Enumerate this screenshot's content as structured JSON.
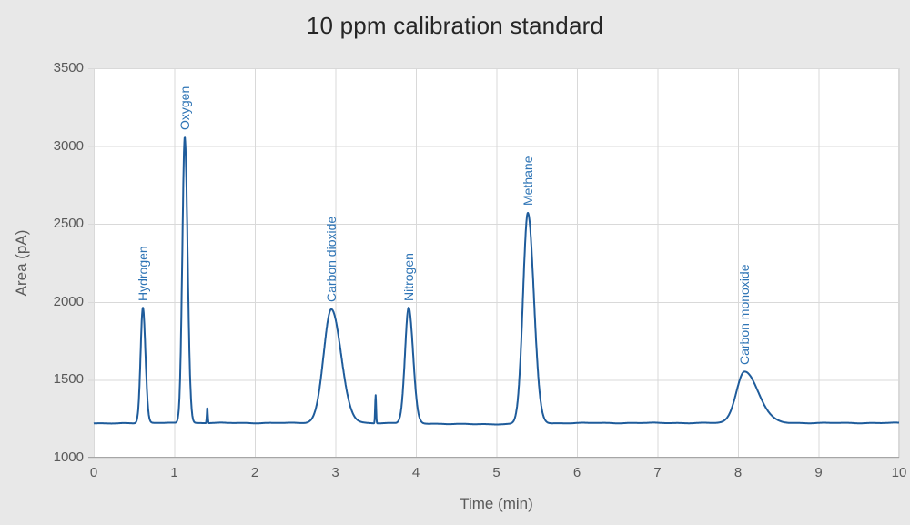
{
  "chart_data": {
    "type": "line",
    "title": "10 ppm calibration standard",
    "xlabel": "Time (min)",
    "ylabel": "Area (pA)",
    "xlim": [
      0,
      10
    ],
    "ylim": [
      1000,
      3500
    ],
    "x_ticks": [
      0,
      1,
      2,
      3,
      4,
      5,
      6,
      7,
      8,
      9,
      10
    ],
    "y_ticks": [
      1000,
      1500,
      2000,
      2500,
      3000,
      3500
    ],
    "grid": true,
    "legend": "none",
    "baseline_pA": 1219,
    "peaks": [
      {
        "label": "Hydrogen",
        "time": 0.61,
        "apex": 1960,
        "sigma": 0.028,
        "sigma_r": 0.032
      },
      {
        "label": "Oxygen",
        "time": 1.13,
        "apex": 3055,
        "sigma": 0.03,
        "sigma_r": 0.035
      },
      {
        "label": "",
        "time": 1.41,
        "apex": 1320,
        "sigma": 0.006,
        "sigma_r": 0.006
      },
      {
        "label": "Carbon dioxide",
        "time": 2.95,
        "apex": 1950,
        "sigma": 0.095,
        "sigma_r": 0.12
      },
      {
        "label": "",
        "time": 3.5,
        "apex": 1400,
        "sigma": 0.006,
        "sigma_r": 0.006
      },
      {
        "label": "Nitrogen",
        "time": 3.91,
        "apex": 1960,
        "sigma": 0.045,
        "sigma_r": 0.055
      },
      {
        "label": "Methane",
        "time": 5.39,
        "apex": 2570,
        "sigma": 0.06,
        "sigma_r": 0.075
      },
      {
        "label": "Carbon monoxide",
        "time": 8.08,
        "apex": 1550,
        "sigma": 0.1,
        "sigma_r": 0.17
      }
    ],
    "colors": {
      "line": "#1f5c9b",
      "peak_label": "#2e74b5",
      "grid": "#d9d9d9",
      "axis_line": "#a6a6a6",
      "tick_text": "#595959",
      "title_text": "#262626",
      "plot_bg": "#ffffff",
      "page_bg": "#e8e8e8"
    }
  }
}
